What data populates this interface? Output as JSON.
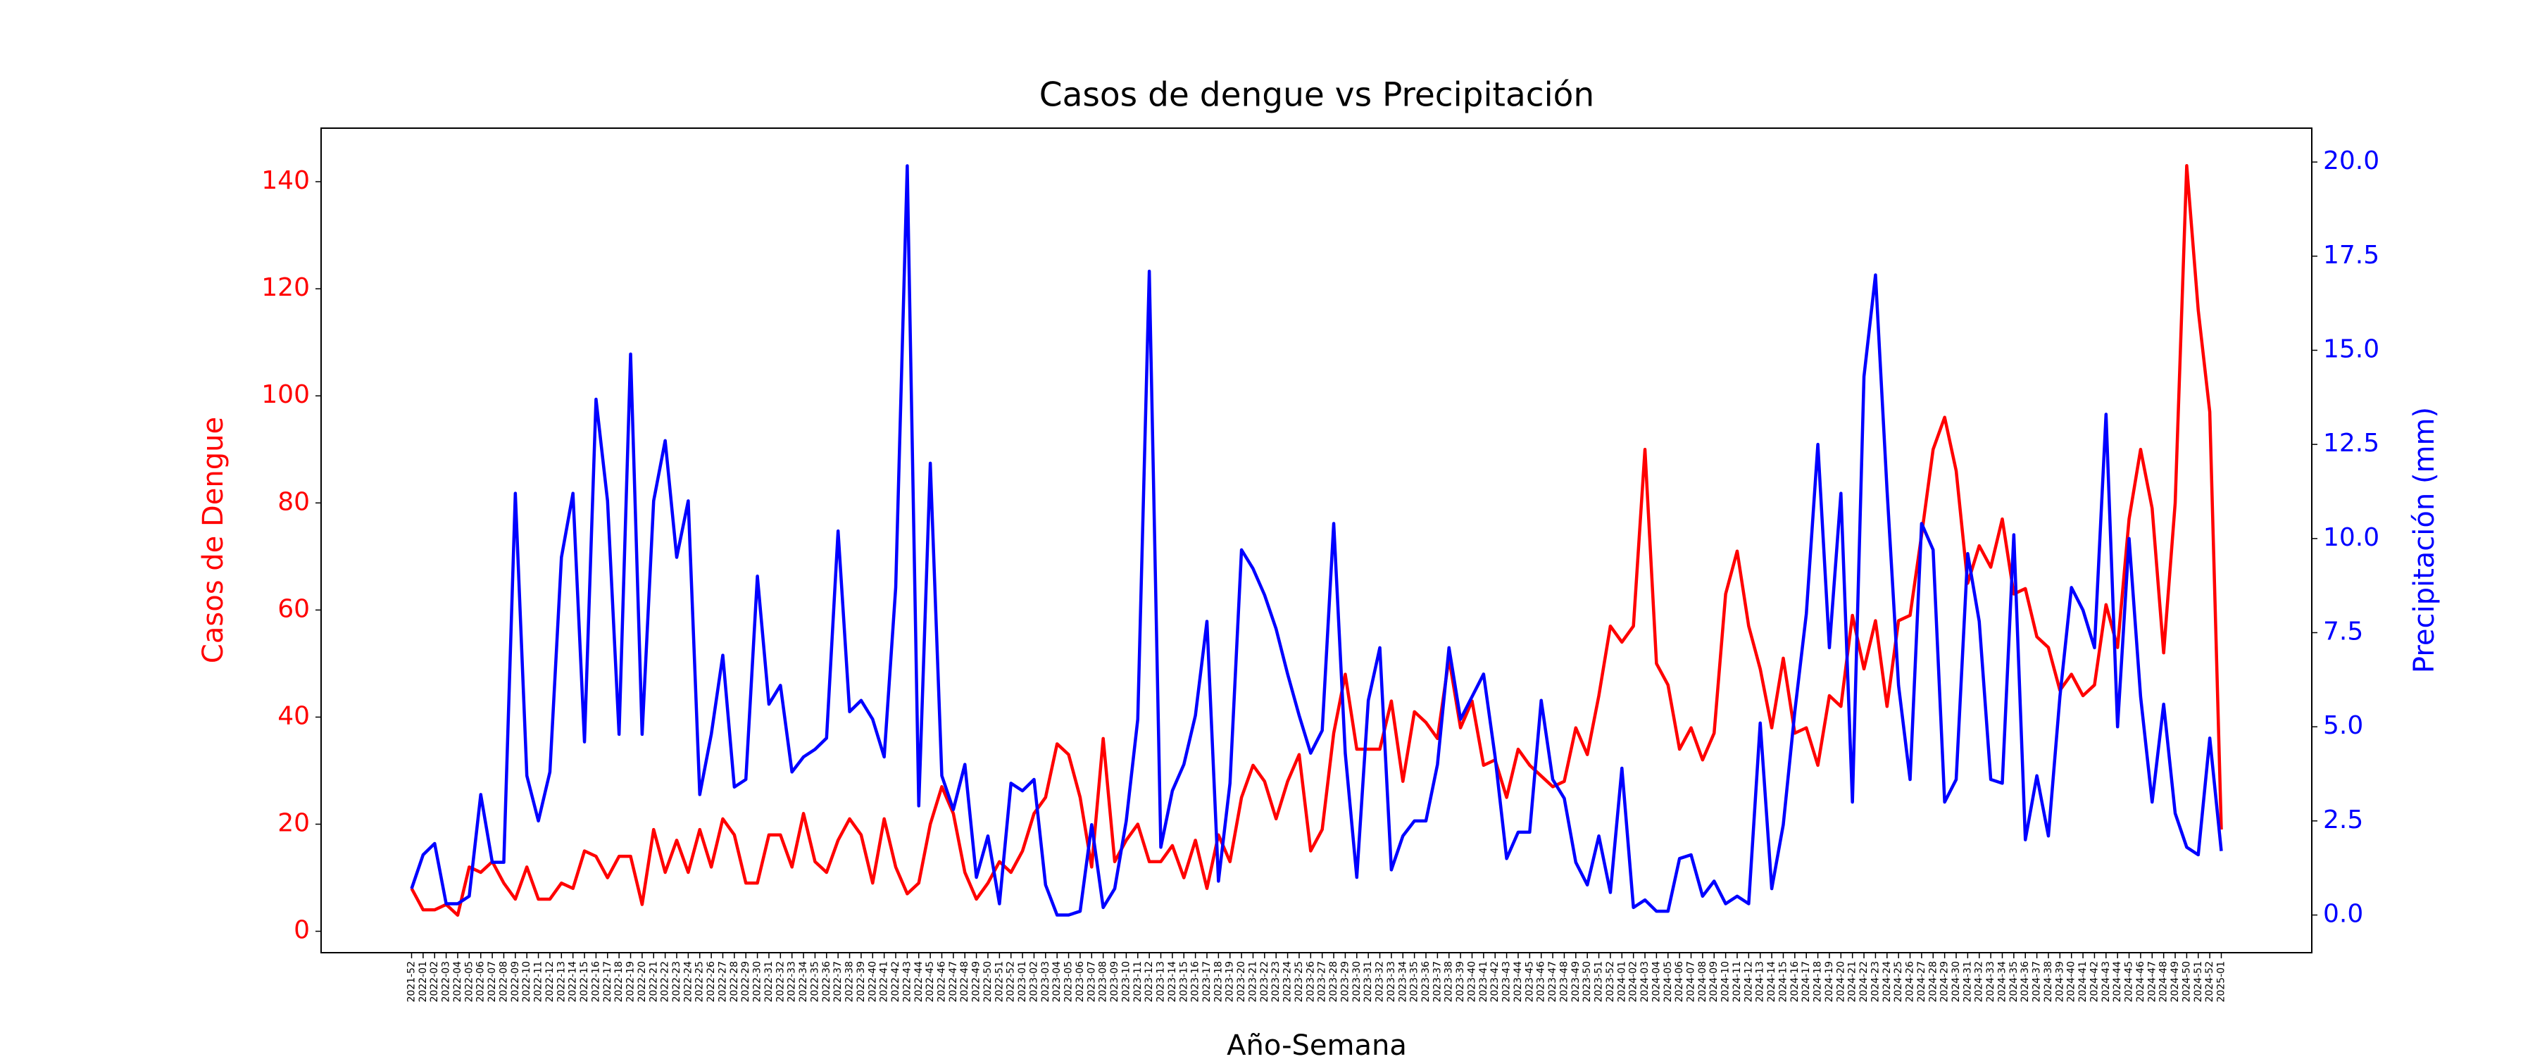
{
  "chart_data": {
    "type": "line",
    "title": "Casos de dengue vs Precipitación",
    "xlabel": "Año-Semana",
    "ylabel": "Casos de Dengue",
    "y2label": "Precipitación (mm)",
    "categories": [
      "2021-52",
      "2022-01",
      "2022-02",
      "2022-03",
      "2022-04",
      "2022-05",
      "2022-06",
      "2022-07",
      "2022-08",
      "2022-09",
      "2022-10",
      "2022-11",
      "2022-12",
      "2022-13",
      "2022-14",
      "2022-15",
      "2022-16",
      "2022-17",
      "2022-18",
      "2022-19",
      "2022-20",
      "2022-21",
      "2022-22",
      "2022-23",
      "2022-24",
      "2022-25",
      "2022-26",
      "2022-27",
      "2022-28",
      "2022-29",
      "2022-30",
      "2022-31",
      "2022-32",
      "2022-33",
      "2022-34",
      "2022-35",
      "2022-36",
      "2022-37",
      "2022-38",
      "2022-39",
      "2022-40",
      "2022-41",
      "2022-42",
      "2022-43",
      "2022-44",
      "2022-45",
      "2022-46",
      "2022-47",
      "2022-48",
      "2022-49",
      "2022-50",
      "2022-51",
      "2022-52",
      "2023-01",
      "2023-02",
      "2023-03",
      "2023-04",
      "2023-05",
      "2023-06",
      "2023-07",
      "2023-08",
      "2023-09",
      "2023-10",
      "2023-11",
      "2023-12",
      "2023-13",
      "2023-14",
      "2023-15",
      "2023-16",
      "2023-17",
      "2023-18",
      "2023-19",
      "2023-20",
      "2023-21",
      "2023-22",
      "2023-23",
      "2023-24",
      "2023-25",
      "2023-26",
      "2023-27",
      "2023-28",
      "2023-29",
      "2023-30",
      "2023-31",
      "2023-32",
      "2023-33",
      "2023-34",
      "2023-35",
      "2023-36",
      "2023-37",
      "2023-38",
      "2023-39",
      "2023-40",
      "2023-41",
      "2023-42",
      "2023-43",
      "2023-44",
      "2023-45",
      "2023-46",
      "2023-47",
      "2023-48",
      "2023-49",
      "2023-50",
      "2023-51",
      "2023-52",
      "2024-01",
      "2024-02",
      "2024-03",
      "2024-04",
      "2024-05",
      "2024-06",
      "2024-07",
      "2024-08",
      "2024-09",
      "2024-10",
      "2024-11",
      "2024-12",
      "2024-13",
      "2024-14",
      "2024-15",
      "2024-16",
      "2024-17",
      "2024-18",
      "2024-19",
      "2024-20",
      "2024-21",
      "2024-22",
      "2024-23",
      "2024-24",
      "2024-25",
      "2024-26",
      "2024-27",
      "2024-28",
      "2024-29",
      "2024-30",
      "2024-31",
      "2024-32",
      "2024-33",
      "2024-34",
      "2024-35",
      "2024-36",
      "2024-37",
      "2024-38",
      "2024-39",
      "2024-40",
      "2024-41",
      "2024-42",
      "2024-43",
      "2024-44",
      "2024-45",
      "2024-46",
      "2024-47",
      "2024-48",
      "2024-49",
      "2024-50",
      "2024-51",
      "2024-52",
      "2025-01"
    ],
    "series": [
      {
        "name": "Casos de Dengue",
        "color": "#ff0000",
        "values": [
          8,
          4,
          4,
          5,
          3,
          12,
          11,
          13,
          9,
          6,
          12,
          6,
          6,
          9,
          8,
          15,
          14,
          10,
          14,
          14,
          5,
          19,
          11,
          17,
          11,
          19,
          12,
          21,
          18,
          9,
          9,
          18,
          18,
          12,
          22,
          13,
          11,
          17,
          21,
          18,
          9,
          21,
          12,
          7,
          9,
          20,
          27,
          22,
          11,
          6,
          9,
          13,
          11,
          15,
          22,
          25,
          35,
          33,
          25,
          12,
          36,
          13,
          17,
          20,
          13,
          13,
          16,
          10,
          17,
          8,
          18,
          13,
          25,
          31,
          28,
          21,
          28,
          33,
          15,
          19,
          37,
          48,
          34,
          34,
          34,
          43,
          28,
          41,
          39,
          36,
          51,
          38,
          43,
          31,
          32,
          25,
          34,
          31,
          29,
          27,
          28,
          38,
          33,
          44,
          57,
          54,
          57,
          90,
          50,
          46,
          34,
          38,
          32,
          37,
          63,
          71,
          57,
          49,
          38,
          51,
          37,
          38,
          31,
          44,
          42,
          59,
          49,
          58,
          42,
          58,
          59,
          74,
          90,
          96,
          86,
          65,
          72,
          68,
          77,
          63,
          64,
          55,
          53,
          45,
          48,
          44,
          46,
          61,
          53,
          77,
          90,
          79,
          52,
          80,
          143,
          116,
          97,
          19
        ]
      },
      {
        "name": "Precipitación (mm)",
        "color": "#0000ff",
        "axis": "y2",
        "values": [
          0.7,
          1.6,
          1.9,
          0.3,
          0.3,
          0.5,
          3.2,
          1.4,
          1.4,
          11.2,
          3.7,
          2.5,
          3.8,
          9.5,
          11.2,
          4.6,
          13.7,
          11.0,
          4.8,
          14.9,
          4.8,
          11.0,
          12.6,
          9.5,
          11.0,
          3.2,
          4.8,
          6.9,
          3.4,
          3.6,
          9.0,
          5.6,
          6.1,
          3.8,
          4.2,
          4.4,
          4.7,
          10.2,
          5.4,
          5.7,
          5.2,
          4.2,
          8.7,
          19.9,
          2.9,
          12.0,
          3.7,
          2.8,
          4.0,
          1.0,
          2.1,
          0.3,
          3.5,
          3.3,
          3.6,
          0.8,
          0.0,
          0.0,
          0.1,
          2.4,
          0.2,
          0.7,
          2.5,
          5.2,
          17.1,
          1.8,
          3.3,
          4.0,
          5.3,
          7.8,
          0.9,
          3.5,
          9.7,
          9.2,
          8.5,
          7.6,
          6.4,
          5.3,
          4.3,
          4.9,
          10.4,
          4.3,
          1.0,
          5.7,
          7.1,
          1.2,
          2.1,
          2.5,
          2.5,
          4.0,
          7.1,
          5.2,
          5.8,
          6.4,
          4.2,
          1.5,
          2.2,
          2.2,
          5.7,
          3.6,
          3.1,
          1.4,
          0.8,
          2.1,
          0.6,
          3.9,
          0.2,
          0.4,
          0.1,
          0.1,
          1.5,
          1.6,
          0.5,
          0.9,
          0.3,
          0.5,
          0.3,
          5.1,
          0.7,
          2.4,
          5.4,
          8.0,
          12.5,
          7.1,
          11.2,
          3.0,
          14.3,
          17.0,
          11.3,
          6.1,
          3.6,
          10.4,
          9.7,
          3.0,
          3.6,
          9.6,
          7.8,
          3.6,
          3.5,
          10.1,
          2.0,
          3.7,
          2.1,
          5.8,
          8.7,
          8.1,
          7.1,
          13.3,
          5.0,
          10.0,
          5.8,
          3.0,
          5.6,
          2.7,
          1.8,
          1.6,
          4.7,
          1.7
        ]
      }
    ],
    "ylim": [
      -4,
      150
    ],
    "yticks": [
      0,
      20,
      40,
      60,
      80,
      100,
      120,
      140
    ],
    "y2lim": [
      -1.0,
      20.9
    ],
    "y2ticks": [
      {
        "value": 0,
        "label": "0.0"
      },
      2.5,
      {
        "value": 5,
        "label": "5.0"
      },
      7.5,
      {
        "value": 10,
        "label": "10.0"
      },
      12.5,
      {
        "value": 15,
        "label": "15.0"
      },
      17.5,
      {
        "value": 20,
        "label": "20.0"
      }
    ],
    "grid": false
  }
}
